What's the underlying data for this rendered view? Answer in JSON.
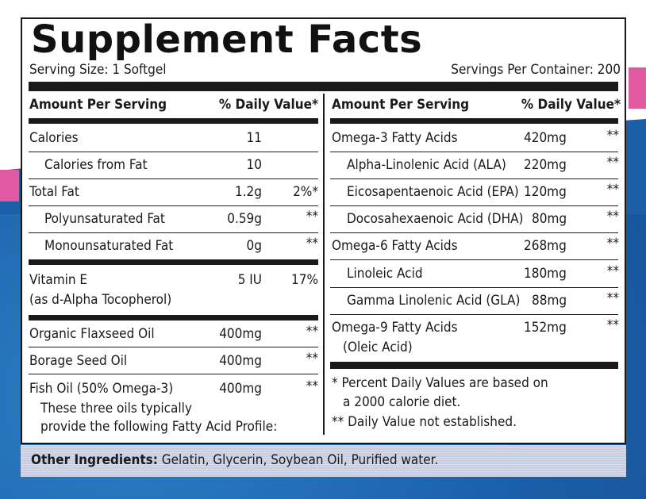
{
  "title": "Supplement Facts",
  "serving_size": "Serving Size: 1 Softgel",
  "servings_per_container": "Servings Per Container: 200",
  "left_header": {
    "amount": "Amount Per Serving",
    "dv": "% Daily Value*"
  },
  "right_header": {
    "amount": "Amount Per Serving",
    "dv": "% Daily Value*"
  },
  "left_rows": [
    {
      "name": "Calories",
      "amount": "11",
      "dv": ""
    },
    {
      "name": "Calories from Fat",
      "amount": "10",
      "dv": ""
    },
    {
      "name": "Total Fat",
      "amount": "1.2g",
      "dv": "2%*"
    },
    {
      "name": "Polyunsaturated Fat",
      "amount": "0.59g",
      "dv": "**"
    },
    {
      "name": "Monounsaturated Fat",
      "amount": "0g",
      "dv": "**"
    },
    {
      "name": "Vitamin E",
      "name2": "(as d-Alpha Tocopherol)",
      "amount": "5 IU",
      "dv": "17%"
    },
    {
      "name": "Organic Flaxseed Oil",
      "amount": "400mg",
      "dv": "**"
    },
    {
      "name": "Borage Seed Oil",
      "amount": "400mg",
      "dv": "**"
    },
    {
      "name": "Fish Oil (50% Omega-3)",
      "amount": "400mg",
      "dv": "**"
    }
  ],
  "oils_note_1": "These three oils typically",
  "oils_note_2": "provide the following Fatty Acid Profile:",
  "right_rows": [
    {
      "name": "Omega-3 Fatty Acids",
      "amount": "420mg",
      "dv": "**"
    },
    {
      "name": "Alpha-Linolenic Acid (ALA)",
      "amount": "220mg",
      "dv": "**"
    },
    {
      "name": "Eicosapentaenoic Acid (EPA)",
      "amount": "120mg",
      "dv": "**"
    },
    {
      "name": "Docosahexaenoic Acid (DHA)",
      "amount": "80mg",
      "dv": "**"
    },
    {
      "name": "Omega-6 Fatty Acids",
      "amount": "268mg",
      "dv": "**"
    },
    {
      "name": "Linoleic Acid",
      "amount": "180mg",
      "dv": "**"
    },
    {
      "name": "Gamma Linolenic Acid (GLA)",
      "amount": "88mg",
      "dv": "**"
    },
    {
      "name": "Omega-9 Fatty Acids",
      "name2": "(Oleic Acid)",
      "amount": "152mg",
      "dv": "**"
    }
  ],
  "footnote_1a": "* Percent Daily Values are based on",
  "footnote_1b": "a 2000 calorie diet.",
  "footnote_2": "** Daily Value not established.",
  "other_ingredients_label": "Other Ingredients:",
  "other_ingredients_value": " Gelatin, Glycerin, Soybean Oil, Purified water.",
  "colors": {
    "pink": "#e05aa2",
    "blue": "#1b5fa8",
    "band": "#c7cde0"
  }
}
